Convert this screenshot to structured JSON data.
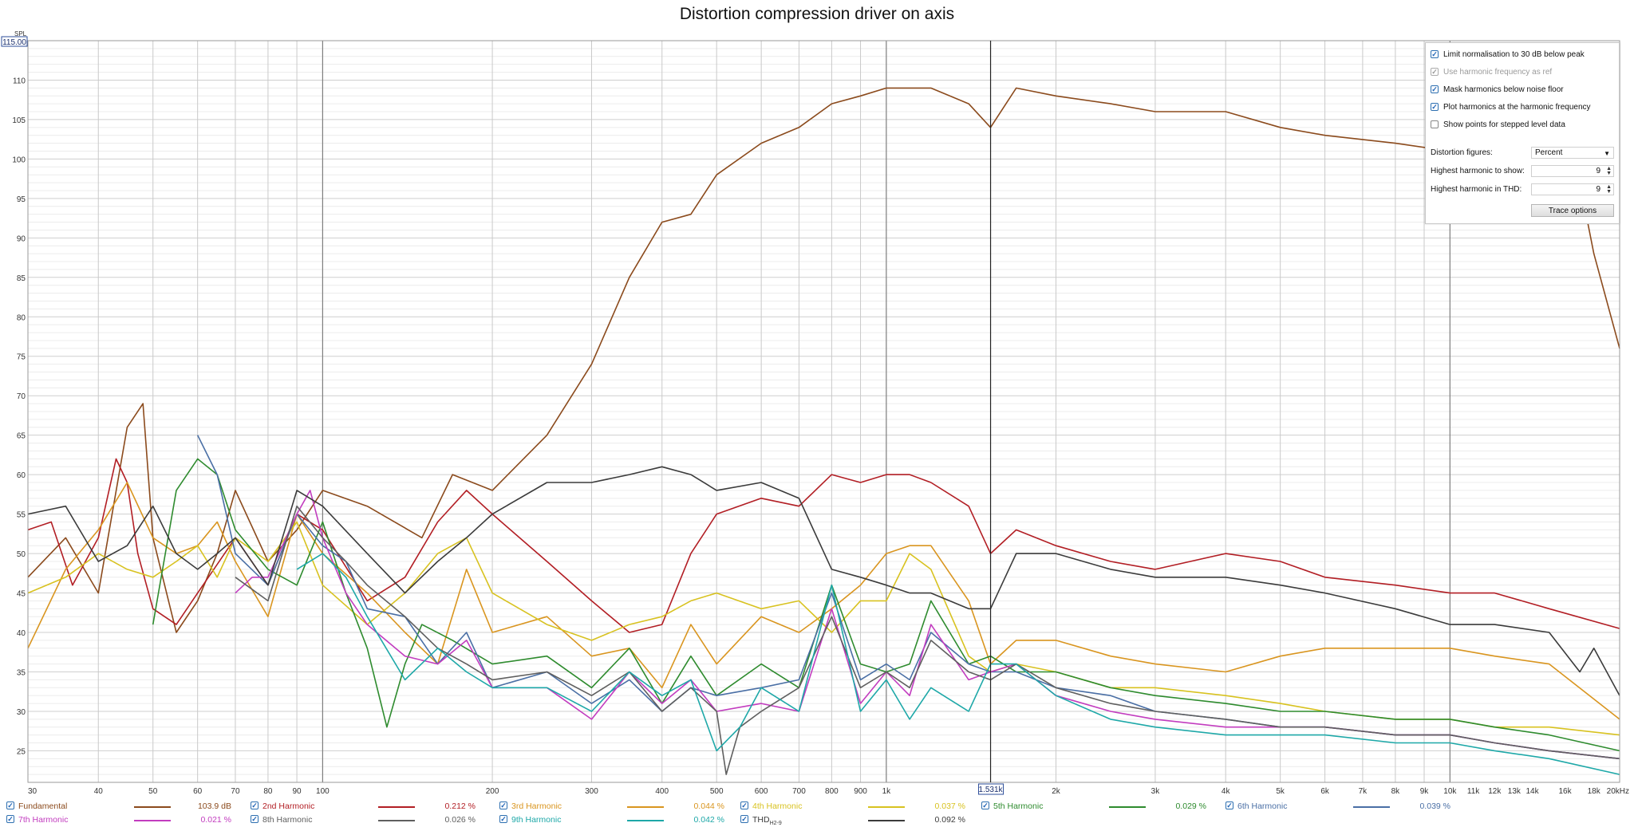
{
  "chart_data": {
    "type": "line",
    "title": "Distortion compression driver on axis",
    "ylabel": "SPL",
    "y_top_readout": "115.00",
    "cursor_readout": "1.531k",
    "cursor_x": 1531,
    "x_scale": "log",
    "xlim": [
      30,
      20000
    ],
    "ylim": [
      21,
      115
    ],
    "grid": true,
    "y_tick_labels": [
      "25",
      "30",
      "35",
      "40",
      "45",
      "50",
      "55",
      "60",
      "65",
      "70",
      "75",
      "80",
      "85",
      "90",
      "95",
      "100",
      "105",
      "110"
    ],
    "x_tick_labels": [
      {
        "v": 30,
        "t": "30"
      },
      {
        "v": 40,
        "t": "40"
      },
      {
        "v": 50,
        "t": "50"
      },
      {
        "v": 60,
        "t": "60"
      },
      {
        "v": 70,
        "t": "70"
      },
      {
        "v": 80,
        "t": "80"
      },
      {
        "v": 90,
        "t": "90"
      },
      {
        "v": 100,
        "t": "100"
      },
      {
        "v": 200,
        "t": "200"
      },
      {
        "v": 300,
        "t": "300"
      },
      {
        "v": 400,
        "t": "400"
      },
      {
        "v": 500,
        "t": "500"
      },
      {
        "v": 600,
        "t": "600"
      },
      {
        "v": 700,
        "t": "700"
      },
      {
        "v": 800,
        "t": "800"
      },
      {
        "v": 900,
        "t": "900"
      },
      {
        "v": 1000,
        "t": "1k"
      },
      {
        "v": 2000,
        "t": "2k"
      },
      {
        "v": 3000,
        "t": "3k"
      },
      {
        "v": 4000,
        "t": "4k"
      },
      {
        "v": 5000,
        "t": "5k"
      },
      {
        "v": 6000,
        "t": "6k"
      },
      {
        "v": 7000,
        "t": "7k"
      },
      {
        "v": 8000,
        "t": "8k"
      },
      {
        "v": 9000,
        "t": "9k"
      },
      {
        "v": 10000,
        "t": "10k"
      },
      {
        "v": 11000,
        "t": "11k"
      },
      {
        "v": 12000,
        "t": "12k"
      },
      {
        "v": 13000,
        "t": "13k"
      },
      {
        "v": 14000,
        "t": "14k"
      },
      {
        "v": 16000,
        "t": "16k"
      },
      {
        "v": 18000,
        "t": "18k"
      },
      {
        "v": 20000,
        "t": "20kHz"
      }
    ],
    "series": [
      {
        "name": "Fundamental",
        "color": "#8b4a1c",
        "value": "103.9 dB",
        "x": [
          30,
          35,
          40,
          45,
          48,
          50,
          55,
          60,
          65,
          70,
          80,
          90,
          100,
          120,
          150,
          170,
          200,
          250,
          300,
          350,
          400,
          450,
          500,
          600,
          700,
          800,
          900,
          1000,
          1100,
          1200,
          1400,
          1531,
          1700,
          2000,
          2500,
          3000,
          4000,
          5000,
          6000,
          8000,
          10000,
          12000,
          15000,
          17000,
          18000,
          20000
        ],
        "y": [
          47,
          52,
          45,
          66,
          69,
          52,
          40,
          44,
          50,
          58,
          49,
          53,
          58,
          56,
          52,
          60,
          58,
          65,
          74,
          85,
          92,
          93,
          98,
          102,
          104,
          107,
          108,
          109,
          109,
          109,
          107,
          104,
          109,
          108,
          107,
          106,
          106,
          104,
          103,
          102,
          101,
          100,
          100,
          97,
          88,
          76
        ]
      },
      {
        "name": "2nd Harmonic",
        "color": "#b21e24",
        "value": "0.212 %",
        "x": [
          30,
          33,
          36,
          40,
          43,
          45,
          47,
          50,
          55,
          60,
          70,
          80,
          90,
          100,
          120,
          140,
          160,
          180,
          200,
          250,
          300,
          350,
          400,
          450,
          500,
          600,
          700,
          800,
          900,
          1000,
          1100,
          1200,
          1400,
          1531,
          1700,
          2000,
          2500,
          3000,
          4000,
          5000,
          6000,
          8000,
          10000,
          12000,
          15000,
          20000
        ],
        "y": [
          53,
          54,
          46,
          52,
          62,
          59,
          50,
          43,
          41,
          45,
          52,
          46,
          55,
          53,
          44,
          47,
          54,
          58,
          55,
          49,
          44,
          40,
          41,
          50,
          55,
          57,
          56,
          60,
          59,
          60,
          60,
          59,
          56,
          50,
          53,
          51,
          49,
          48,
          50,
          49,
          47,
          46,
          45,
          45,
          43,
          40.5
        ]
      },
      {
        "name": "3rd Harmonic",
        "color": "#d9951f",
        "value": "0.044 %",
        "x": [
          30,
          35,
          40,
          45,
          50,
          55,
          60,
          65,
          70,
          80,
          90,
          100,
          120,
          140,
          160,
          180,
          200,
          250,
          300,
          350,
          400,
          450,
          500,
          600,
          700,
          800,
          900,
          1000,
          1100,
          1200,
          1400,
          1531,
          1700,
          2000,
          2500,
          3000,
          4000,
          5000,
          6000,
          8000,
          10000,
          12000,
          15000,
          20000
        ],
        "y": [
          38,
          48,
          53,
          59,
          52,
          50,
          51,
          54,
          49,
          42,
          55,
          50,
          45,
          40,
          36,
          48,
          40,
          42,
          37,
          38,
          33,
          41,
          36,
          42,
          40,
          43,
          46,
          50,
          51,
          51,
          44,
          36,
          39,
          39,
          37,
          36,
          35,
          37,
          38,
          38,
          38,
          37,
          36,
          29
        ]
      },
      {
        "name": "4th Harmonic",
        "color": "#d8c220",
        "value": "0.037 %",
        "x": [
          30,
          35,
          40,
          45,
          50,
          55,
          60,
          65,
          70,
          80,
          90,
          100,
          120,
          140,
          160,
          180,
          200,
          250,
          300,
          350,
          400,
          450,
          500,
          600,
          700,
          800,
          900,
          1000,
          1100,
          1200,
          1400,
          1531,
          1700,
          2000,
          2500,
          3000,
          4000,
          5000,
          6000,
          8000,
          10000,
          12000,
          15000,
          20000
        ],
        "y": [
          45,
          47,
          50,
          48,
          47,
          49,
          51,
          47,
          52,
          49,
          54,
          46,
          41,
          45,
          50,
          52,
          45,
          41,
          39,
          41,
          42,
          44,
          45,
          43,
          44,
          40,
          44,
          44,
          50,
          48,
          37,
          35,
          36,
          35,
          33,
          33,
          32,
          31,
          30,
          29,
          29,
          28,
          28,
          27
        ]
      },
      {
        "name": "5th Harmonic",
        "color": "#2e8b2e",
        "value": "0.029 %",
        "x": [
          50,
          55,
          60,
          65,
          70,
          80,
          90,
          100,
          110,
          120,
          130,
          140,
          150,
          170,
          200,
          250,
          300,
          350,
          400,
          450,
          500,
          600,
          700,
          800,
          900,
          1000,
          1100,
          1200,
          1400,
          1531,
          1700,
          2000,
          2500,
          3000,
          4000,
          5000,
          6000,
          8000,
          10000,
          12000,
          15000,
          20000
        ],
        "y": [
          41,
          58,
          62,
          60,
          53,
          48,
          46,
          54,
          45,
          38,
          28,
          36,
          41,
          39,
          36,
          37,
          33,
          38,
          31,
          37,
          32,
          36,
          33,
          46,
          36,
          35,
          36,
          44,
          36,
          37,
          35,
          35,
          33,
          32,
          31,
          30,
          30,
          29,
          29,
          28,
          27,
          25
        ]
      },
      {
        "name": "6th Harmonic",
        "color": "#4a6fa5",
        "value": "0.039 %",
        "x": [
          60,
          65,
          70,
          80,
          90,
          100,
          110,
          120,
          140,
          160,
          180,
          200,
          250,
          300,
          350,
          400,
          450,
          500,
          600,
          700,
          800,
          900,
          1000,
          1100,
          1200,
          1400,
          1531,
          1700,
          2000,
          2500,
          3000,
          4000,
          5000,
          6000,
          8000,
          10000,
          12000,
          15000,
          20000
        ],
        "y": [
          65,
          60,
          50,
          46,
          55,
          51,
          49,
          43,
          42,
          36,
          40,
          33,
          35,
          31,
          34,
          30,
          33,
          32,
          33,
          34,
          45,
          34,
          36,
          34,
          40,
          36,
          35,
          35,
          33,
          32,
          30,
          29,
          28,
          28,
          27,
          27,
          26,
          25,
          24
        ]
      },
      {
        "name": "7th Harmonic",
        "color": "#c23cbf",
        "value": "0.021 %",
        "x": [
          70,
          75,
          80,
          90,
          95,
          100,
          110,
          120,
          140,
          160,
          180,
          200,
          250,
          300,
          350,
          400,
          450,
          500,
          600,
          700,
          800,
          900,
          1000,
          1100,
          1200,
          1400,
          1531,
          1700,
          2000,
          2500,
          3000,
          4000,
          5000,
          6000,
          8000,
          10000,
          12000,
          15000,
          20000
        ],
        "y": [
          45,
          47,
          47,
          55,
          58,
          52,
          45,
          41,
          37,
          36,
          39,
          33,
          33,
          29,
          35,
          31,
          34,
          30,
          31,
          30,
          43,
          31,
          35,
          32,
          41,
          34,
          35,
          36,
          32,
          30,
          29,
          28,
          28,
          28,
          27,
          27,
          26,
          25,
          24
        ]
      },
      {
        "name": "8th Harmonic",
        "color": "#5f5f5f",
        "value": "0.026 %",
        "x": [
          70,
          80,
          90,
          100,
          110,
          120,
          140,
          160,
          180,
          200,
          250,
          300,
          350,
          400,
          450,
          500,
          520,
          550,
          600,
          700,
          800,
          900,
          1000,
          1100,
          1200,
          1400,
          1531,
          1700,
          2000,
          2500,
          3000,
          4000,
          5000,
          6000,
          8000,
          10000,
          12000,
          15000,
          20000
        ],
        "y": [
          47,
          44,
          56,
          52,
          49,
          46,
          42,
          38,
          36,
          34,
          35,
          32,
          35,
          30,
          33,
          30,
          22,
          28,
          30,
          33,
          42,
          33,
          35,
          33,
          39,
          35,
          34,
          36,
          33,
          31,
          30,
          29,
          28,
          28,
          27,
          27,
          26,
          25,
          24
        ]
      },
      {
        "name": "9th Harmonic",
        "color": "#1ea8a8",
        "value": "0.042 %",
        "x": [
          90,
          100,
          110,
          120,
          140,
          160,
          180,
          200,
          250,
          300,
          350,
          400,
          450,
          500,
          550,
          600,
          700,
          800,
          900,
          1000,
          1100,
          1200,
          1400,
          1531,
          1700,
          2000,
          2500,
          3000,
          4000,
          5000,
          6000,
          8000,
          10000,
          12000,
          15000,
          20000
        ],
        "y": [
          48,
          50,
          47,
          42,
          34,
          38,
          35,
          33,
          33,
          30,
          35,
          32,
          34,
          25,
          28,
          33,
          30,
          46,
          30,
          34,
          29,
          33,
          30,
          36,
          36,
          32,
          29,
          28,
          27,
          27,
          27,
          26,
          26,
          25,
          24,
          22
        ]
      },
      {
        "name": "THD",
        "sub": "H2-9",
        "color": "#3b3b3b",
        "value": "0.092 %",
        "x": [
          30,
          35,
          40,
          45,
          50,
          55,
          60,
          65,
          70,
          80,
          90,
          100,
          120,
          140,
          160,
          180,
          200,
          250,
          300,
          350,
          400,
          450,
          500,
          600,
          700,
          800,
          900,
          1000,
          1100,
          1200,
          1400,
          1531,
          1700,
          2000,
          2500,
          3000,
          4000,
          5000,
          6000,
          8000,
          10000,
          12000,
          15000,
          17000,
          18000,
          20000
        ],
        "y": [
          55,
          56,
          49,
          51,
          56,
          50,
          48,
          50,
          52,
          46,
          58,
          56,
          50,
          45,
          49,
          52,
          55,
          59,
          59,
          60,
          61,
          60,
          58,
          59,
          57,
          48,
          47,
          46,
          45,
          45,
          43,
          43,
          50,
          50,
          48,
          47,
          47,
          46,
          45,
          43,
          41,
          41,
          40,
          35,
          38,
          32
        ]
      }
    ]
  },
  "panel": {
    "options": [
      {
        "label": "Limit normalisation to 30 dB below peak",
        "checked": true,
        "disabled": false
      },
      {
        "label": "Use harmonic frequency as ref",
        "checked": true,
        "disabled": true
      },
      {
        "label": "Mask harmonics below noise floor",
        "checked": true,
        "disabled": false
      },
      {
        "label": "Plot harmonics at the harmonic frequency",
        "checked": true,
        "disabled": false
      },
      {
        "label": "Show points for stepped level data",
        "checked": false,
        "disabled": false
      }
    ],
    "distortion_label": "Distortion figures:",
    "distortion_value": "Percent",
    "highest_show_label": "Highest harmonic to show:",
    "highest_show_value": "9",
    "highest_thd_label": "Highest harmonic in THD:",
    "highest_thd_value": "9",
    "trace_button": "Trace options"
  }
}
